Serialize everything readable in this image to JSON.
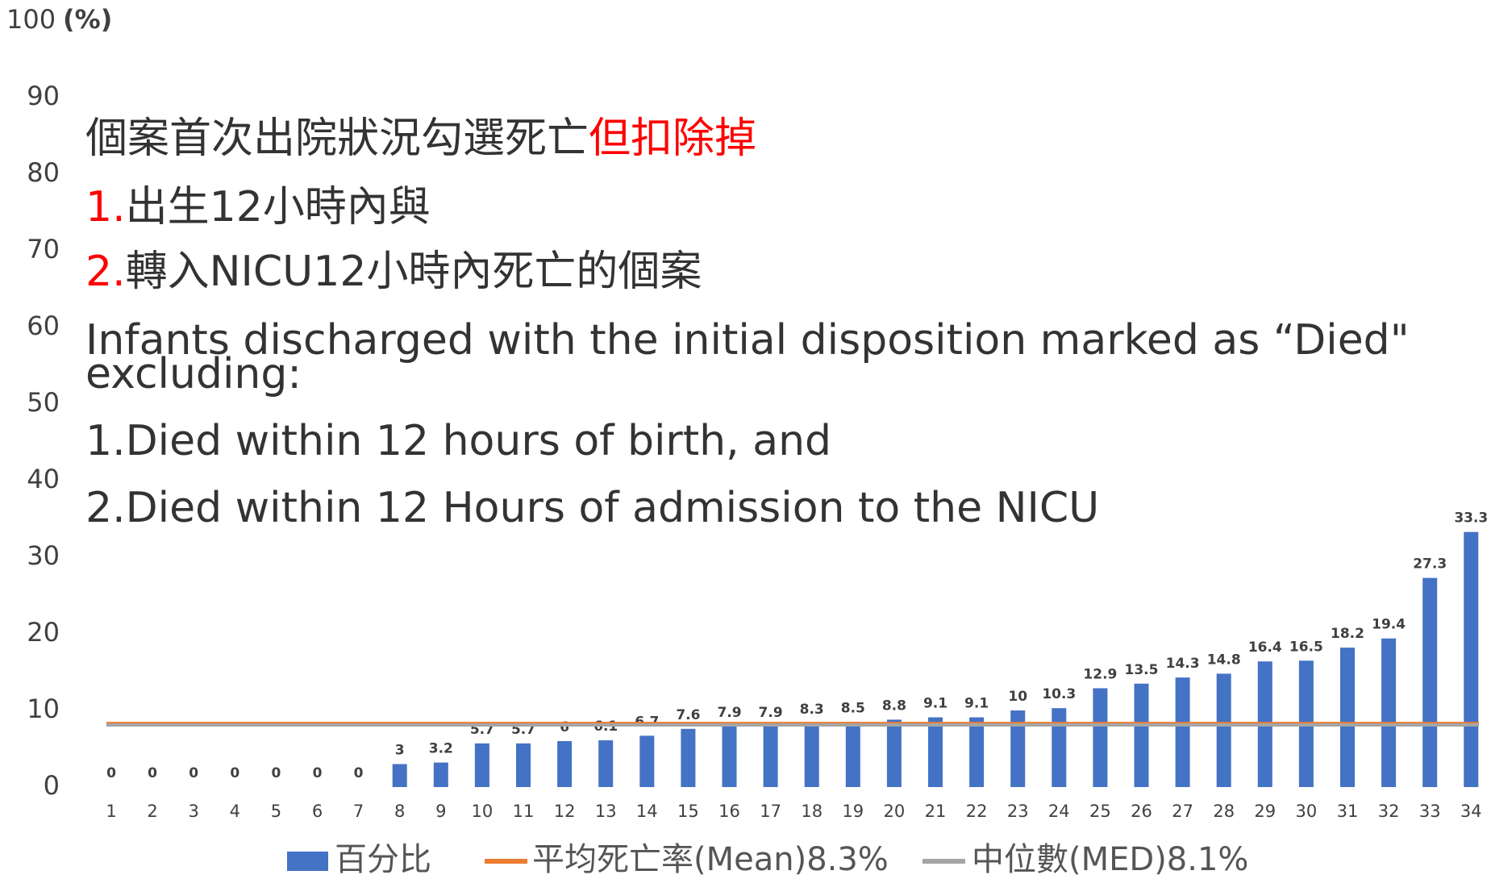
{
  "chart_data": {
    "type": "bar",
    "y_axis_label": "(%)",
    "categories": [
      "1",
      "2",
      "3",
      "4",
      "5",
      "6",
      "7",
      "8",
      "9",
      "10",
      "11",
      "12",
      "13",
      "14",
      "15",
      "16",
      "17",
      "18",
      "19",
      "20",
      "21",
      "22",
      "23",
      "24",
      "25",
      "26",
      "27",
      "28",
      "29",
      "30",
      "31",
      "32",
      "33",
      "34"
    ],
    "series": [
      {
        "name": "百分比",
        "color": "#4472c4",
        "values": [
          0,
          0,
          0,
          0,
          0,
          0,
          0,
          3,
          3.2,
          5.7,
          5.7,
          6,
          6.1,
          6.7,
          7.6,
          7.9,
          7.9,
          8.3,
          8.5,
          8.8,
          9.1,
          9.1,
          10,
          10.3,
          12.9,
          13.5,
          14.3,
          14.8,
          16.4,
          16.5,
          18.2,
          19.4,
          27.3,
          33.3
        ]
      }
    ],
    "reference_lines": [
      {
        "name": "平均死亡率(Mean)8.3%",
        "value": 8.3,
        "color": "#ed7d31"
      },
      {
        "name": "中位數(MED)8.1%",
        "value": 8.1,
        "color": "#a5a5a5"
      }
    ],
    "ylim": [
      0,
      100
    ],
    "yticks": [
      0,
      10,
      20,
      30,
      40,
      50,
      60,
      70,
      80,
      90,
      100
    ],
    "annotation_lines": [
      [
        {
          "text": "個案首次出院狀況勾選死亡",
          "color": "#333333"
        },
        {
          "text": "但扣除掉",
          "color": "#ff0000"
        }
      ],
      [
        {
          "text": "1.",
          "color": "#ff0000"
        },
        {
          "text": "出生12小時內與",
          "color": "#333333"
        }
      ],
      [
        {
          "text": "2.",
          "color": "#ff0000"
        },
        {
          "text": "轉入NICU12小時內死亡的個案",
          "color": "#333333"
        }
      ],
      [
        {
          "text": "Infants discharged with the initial disposition marked as  “Died\"",
          "color": "#333333"
        }
      ],
      [
        {
          "text": "excluding:",
          "color": "#333333"
        }
      ],
      [
        {
          "text": "1.Died within 12 hours of birth, and",
          "color": "#333333"
        }
      ],
      [
        {
          "text": "2.Died within 12 Hours of admission to the NICU",
          "color": "#333333"
        }
      ]
    ]
  }
}
